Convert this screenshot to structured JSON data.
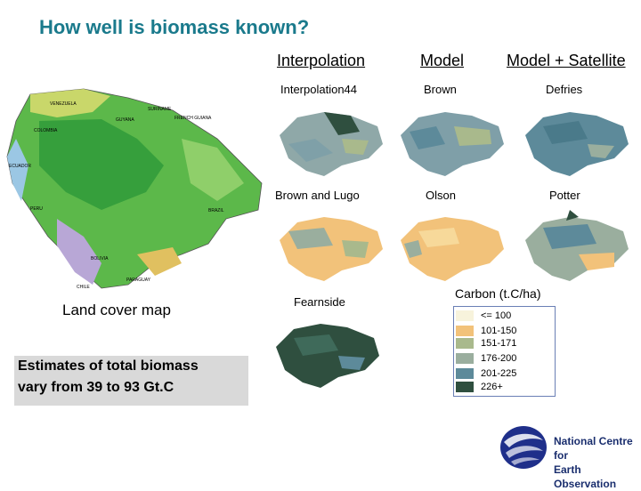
{
  "title": "How well is biomass known?",
  "columns": [
    "Interpolation",
    "Model",
    "Model + Satellite"
  ],
  "maps": {
    "interpolation44": "Interpolation44",
    "brown": "Brown",
    "defries": "Defries",
    "brown_lugo": "Brown and Lugo",
    "olson": "Olson",
    "potter": "Potter",
    "fearnside": "Fearnside"
  },
  "land_cover_label": "Land cover map",
  "land_cover_countries": [
    "VENEZUELA",
    "SURINAME",
    "GUYANA",
    "FRENCH GUIANA",
    "COLOMBIA",
    "ECUADOR",
    "PERU",
    "BRAZIL",
    "BOLIVIA",
    "PARAGUAY",
    "CHILE"
  ],
  "estimate": {
    "line1": "Estimates of total biomass",
    "line2": "vary from 39 to 93 Gt.C"
  },
  "legend": {
    "title": "Carbon (t.C/ha)",
    "items": [
      {
        "label": "<= 100",
        "color": "#f7f3dc"
      },
      {
        "label": "101-150",
        "color": "#f2c27a"
      },
      {
        "label": "151-171",
        "color": "#a9b98c"
      },
      {
        "label": "176-200",
        "color": "#9aae9e"
      },
      {
        "label": "201-225",
        "color": "#5d8a9a"
      },
      {
        "label": "226+",
        "color": "#2f4f3f"
      }
    ]
  },
  "logo": {
    "line1": "National Centre for",
    "line2": "Earth Observation"
  }
}
